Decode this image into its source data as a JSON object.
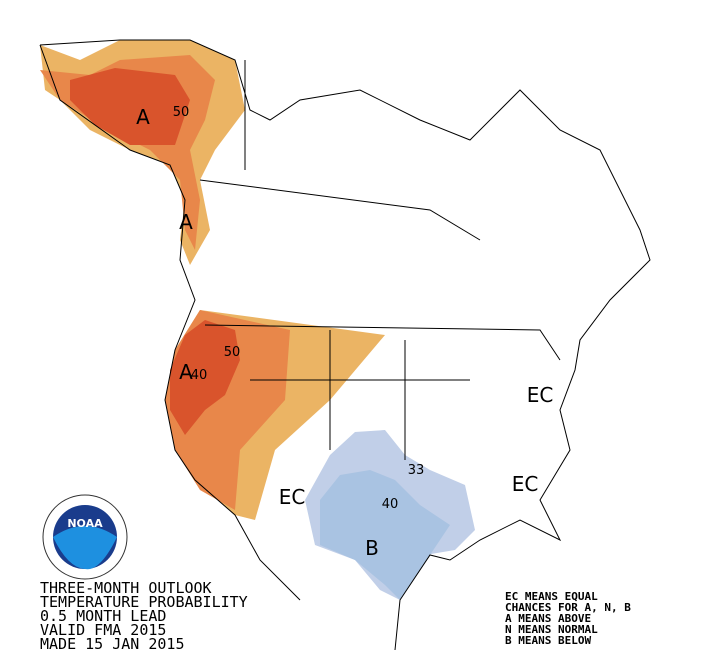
{
  "caption": [
    "THREE-MONTH OUTLOOK",
    "TEMPERATURE PROBABILITY",
    "0.5 MONTH LEAD",
    "VALID FMA 2015",
    "MADE 15 JAN 2015"
  ],
  "legend": [
    "EC MEANS EQUAL",
    "CHANCES FOR A, N, B",
    "A MEANS ABOVE",
    "N MEANS NORMAL",
    "B MEANS BELOW"
  ],
  "logo": "NOAA",
  "map_labels": [
    "A",
    "50",
    "A",
    "50",
    "A",
    "40",
    "EC",
    "EC",
    "EC",
    "33",
    "40",
    "B"
  ]
}
